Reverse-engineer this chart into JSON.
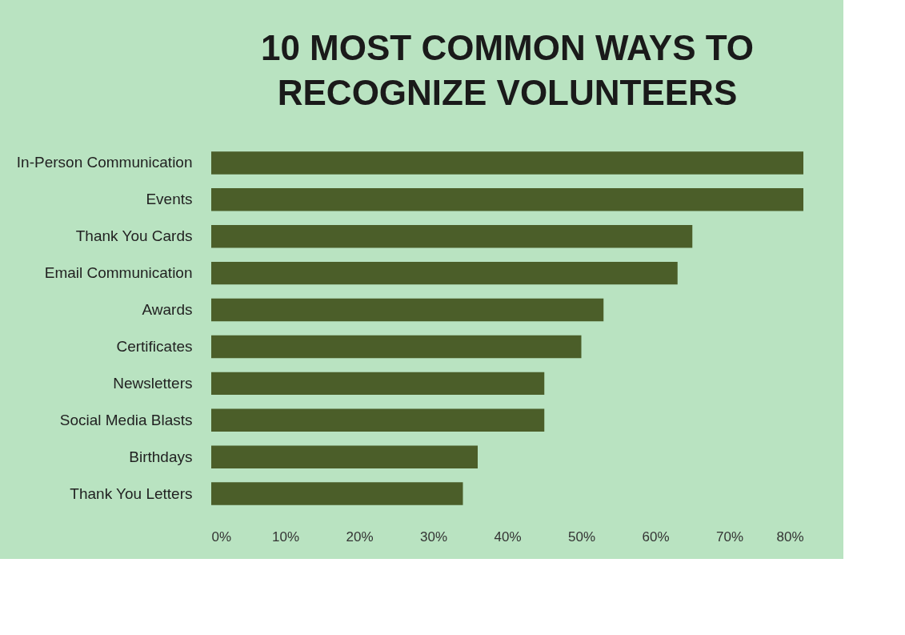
{
  "chart_data": {
    "type": "bar",
    "orientation": "horizontal",
    "title": "10 MOST COMMON WAYS TO\nRECOGNIZE VOLUNTEERS",
    "categories": [
      "In-Person Communication",
      "Events",
      "Thank You Cards",
      "Email Communication",
      "Awards",
      "Certificates",
      "Newsletters",
      "Social Media Blasts",
      "Birthdays",
      "Thank You Letters"
    ],
    "values": [
      80,
      80,
      65,
      63,
      53,
      50,
      45,
      45,
      36,
      34
    ],
    "color": "#4b5e29",
    "xlim": [
      0,
      80
    ],
    "xticks": [
      {
        "value": 0,
        "label": "0%"
      },
      {
        "value": 10,
        "label": "10%"
      },
      {
        "value": 20,
        "label": "20%"
      },
      {
        "value": 30,
        "label": "30%"
      },
      {
        "value": 40,
        "label": "40%"
      },
      {
        "value": 50,
        "label": "50%"
      },
      {
        "value": 60,
        "label": "60%"
      },
      {
        "value": 70,
        "label": "70%"
      },
      {
        "value": 80,
        "label": "80%"
      }
    ],
    "grid": false
  }
}
